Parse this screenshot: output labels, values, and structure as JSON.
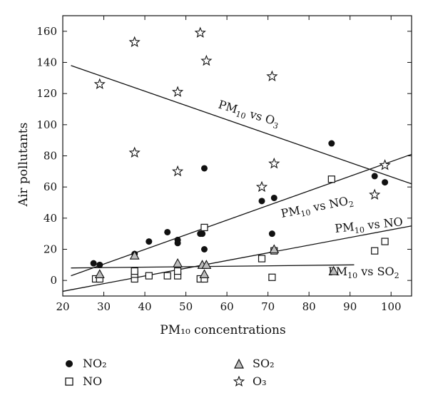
{
  "chart_data": {
    "type": "scatter",
    "xlabel": "PM₁₀ concentrations",
    "ylabel": "Air pollutants",
    "xlim": [
      20,
      105
    ],
    "ylim": [
      -10,
      170
    ],
    "xticks": [
      20,
      30,
      40,
      50,
      60,
      70,
      80,
      90,
      100
    ],
    "yticks": [
      0,
      20,
      40,
      60,
      80,
      100,
      120,
      140,
      160
    ],
    "grid": false,
    "legend_position": "bottom",
    "series": [
      {
        "name": "NO₂",
        "marker": "circle-filled",
        "points": [
          [
            27.5,
            11
          ],
          [
            29,
            10
          ],
          [
            37.5,
            17
          ],
          [
            41,
            25
          ],
          [
            45.5,
            31
          ],
          [
            48,
            24
          ],
          [
            48,
            26
          ],
          [
            53.5,
            30
          ],
          [
            54,
            30
          ],
          [
            54.5,
            72
          ],
          [
            54.5,
            20
          ],
          [
            68.5,
            51
          ],
          [
            71,
            30
          ],
          [
            71.5,
            53
          ],
          [
            85.5,
            88
          ],
          [
            96,
            67
          ],
          [
            98.5,
            63
          ]
        ]
      },
      {
        "name": "NO",
        "marker": "square-open",
        "points": [
          [
            28,
            1
          ],
          [
            29,
            1
          ],
          [
            37.5,
            1
          ],
          [
            37.5,
            4
          ],
          [
            37.5,
            6
          ],
          [
            41,
            3
          ],
          [
            45.5,
            3
          ],
          [
            48,
            3
          ],
          [
            48,
            6
          ],
          [
            53.5,
            1
          ],
          [
            54.5,
            1
          ],
          [
            54.5,
            34
          ],
          [
            68.5,
            14
          ],
          [
            71,
            2
          ],
          [
            71.5,
            19
          ],
          [
            85.5,
            65
          ],
          [
            96,
            19
          ],
          [
            98.5,
            25
          ]
        ]
      },
      {
        "name": "SO₂",
        "marker": "triangle-open",
        "points": [
          [
            29,
            4
          ],
          [
            37.5,
            16
          ],
          [
            48,
            11
          ],
          [
            54,
            10
          ],
          [
            54.5,
            4
          ],
          [
            55,
            10
          ],
          [
            71.5,
            20
          ],
          [
            86,
            6
          ]
        ]
      },
      {
        "name": "O₃",
        "marker": "star-open",
        "points": [
          [
            29,
            126
          ],
          [
            37.5,
            153
          ],
          [
            37.5,
            82
          ],
          [
            48,
            121
          ],
          [
            48,
            70
          ],
          [
            53.5,
            159
          ],
          [
            55,
            141
          ],
          [
            68.5,
            60
          ],
          [
            71,
            131
          ],
          [
            71.5,
            75
          ],
          [
            96,
            55
          ],
          [
            98.5,
            74
          ]
        ]
      }
    ],
    "fit_lines": [
      {
        "label_main": "PM",
        "label_sub": "10",
        "label_rest": " vs O",
        "label_sub2": "3",
        "points": [
          [
            22,
            138
          ],
          [
            105,
            62
          ]
        ]
      },
      {
        "label_main": "PM",
        "label_sub": "10",
        "label_rest": " vs NO",
        "label_sub2": "2",
        "points": [
          [
            22,
            3
          ],
          [
            105,
            81
          ]
        ]
      },
      {
        "label_main": "PM",
        "label_sub": "10",
        "label_rest": " vs NO",
        "label_sub2": "",
        "points": [
          [
            20,
            -7
          ],
          [
            105,
            35
          ]
        ]
      },
      {
        "label_main": "PM",
        "label_sub": "10",
        "label_rest": " vs SO",
        "label_sub2": "2",
        "points": [
          [
            22,
            8
          ],
          [
            91,
            10
          ]
        ]
      }
    ],
    "legend": [
      {
        "label": "NO₂",
        "marker": "circle-filled"
      },
      {
        "label": "NO",
        "marker": "square-open"
      },
      {
        "label": "SO₂",
        "marker": "triangle-open"
      },
      {
        "label": "O₃",
        "marker": "star-open"
      }
    ]
  }
}
